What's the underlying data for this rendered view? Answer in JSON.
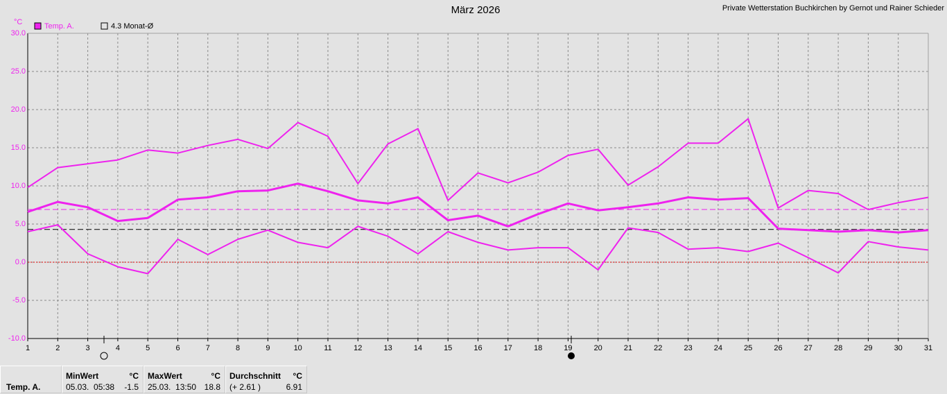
{
  "chart_data": {
    "type": "line",
    "title": "März 2026",
    "subtitle": "Private Wetterstation Buchkirchen by Gernot und Rainer Schieder",
    "y_label": "°C",
    "x": [
      1,
      2,
      3,
      4,
      5,
      6,
      7,
      8,
      9,
      10,
      11,
      12,
      13,
      14,
      15,
      16,
      17,
      18,
      19,
      20,
      21,
      22,
      23,
      24,
      25,
      26,
      27,
      28,
      29,
      30,
      31
    ],
    "series": [
      {
        "name": "Temp. A.",
        "color": "#ee22ee",
        "values": [
          9.8,
          12.4,
          12.9,
          13.4,
          14.7,
          14.3,
          15.3,
          16.1,
          14.9,
          18.3,
          16.5,
          10.3,
          15.5,
          17.5,
          8.1,
          11.7,
          10.4,
          11.8,
          14.0,
          14.8,
          10.1,
          12.5,
          15.6,
          15.6,
          18.8,
          7.1,
          9.4,
          9.0,
          6.9,
          7.8,
          8.5
        ]
      },
      {
        "color": "#ee22ee",
        "values": [
          6.6,
          7.9,
          7.2,
          5.4,
          5.8,
          8.2,
          8.5,
          9.3,
          9.4,
          10.3,
          9.3,
          8.1,
          7.7,
          8.5,
          5.5,
          6.1,
          4.7,
          6.3,
          7.7,
          6.8,
          7.2,
          7.7,
          8.5,
          8.2,
          8.4,
          4.4,
          4.2,
          4.0,
          4.2,
          3.9,
          4.2
        ]
      },
      {
        "color": "#ee22ee",
        "values": [
          4.0,
          4.9,
          1.1,
          -0.6,
          -1.5,
          3.0,
          1.0,
          3.0,
          4.2,
          2.6,
          1.9,
          4.7,
          3.4,
          1.1,
          4.0,
          2.6,
          1.6,
          1.9,
          1.9,
          -1.0,
          4.5,
          3.9,
          1.7,
          1.9,
          1.4,
          2.5,
          0.6,
          -1.4,
          2.7,
          2.0,
          1.6
        ]
      }
    ],
    "reference_line": {
      "value": 4.3,
      "label": "4.3 Monat-Ø",
      "color": "#000000"
    },
    "xlim": [
      1,
      31
    ],
    "xticks": [
      1,
      2,
      3,
      4,
      5,
      6,
      7,
      8,
      9,
      10,
      11,
      12,
      13,
      14,
      15,
      16,
      17,
      18,
      19,
      20,
      21,
      22,
      23,
      24,
      25,
      26,
      27,
      28,
      29,
      30,
      31
    ],
    "ylim": [
      -10,
      30
    ],
    "yticks": [
      {
        "value": -10,
        "label": "-10.0"
      },
      {
        "value": -5,
        "label": "-5.0"
      },
      {
        "value": 0,
        "label": "0.0"
      },
      {
        "value": 5,
        "label": "5.0"
      },
      {
        "value": 10,
        "label": "10.0"
      },
      {
        "value": 15,
        "label": "15.0"
      },
      {
        "value": 20,
        "label": "20.0"
      },
      {
        "value": 25,
        "label": "25.0"
      },
      {
        "value": 30,
        "label": "30.0"
      }
    ],
    "grid": true
  },
  "summary": {
    "row_label": "Temp. A.",
    "columns": [
      {
        "header": "MinWert",
        "unit": "°C",
        "time": "05.03.  05:38",
        "value": -1.5
      },
      {
        "header": "MaxWert",
        "unit": "°C",
        "time": "25.03.  13:50",
        "value": 18.8
      },
      {
        "header": "Durchschnitt",
        "unit": "°C",
        "time": "(+ 2.61 )",
        "value": 6.91
      }
    ]
  }
}
